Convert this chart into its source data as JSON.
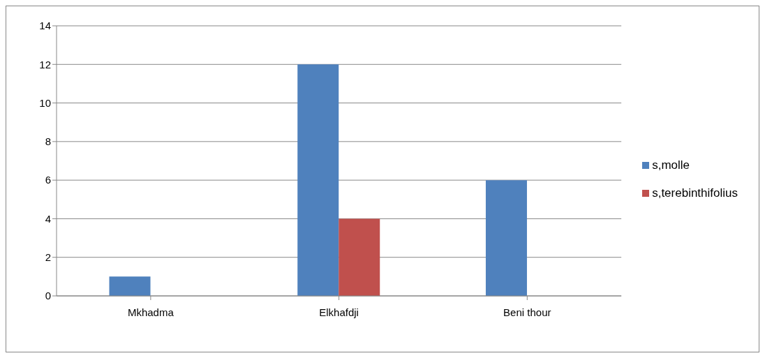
{
  "chart_data": {
    "type": "bar",
    "categories": [
      "Mkhadma",
      "Elkhafdji",
      "Beni thour"
    ],
    "series": [
      {
        "name": "s,molle",
        "color": "#4f81bd",
        "values": [
          1,
          12,
          6
        ]
      },
      {
        "name": "s,terebinthifolius",
        "color": "#c0504d",
        "values": [
          0,
          4,
          0
        ]
      }
    ],
    "ylim": [
      0,
      14
    ],
    "yticks": [
      0,
      2,
      4,
      6,
      8,
      10,
      12,
      14
    ],
    "grid": "y",
    "legend": "right"
  }
}
